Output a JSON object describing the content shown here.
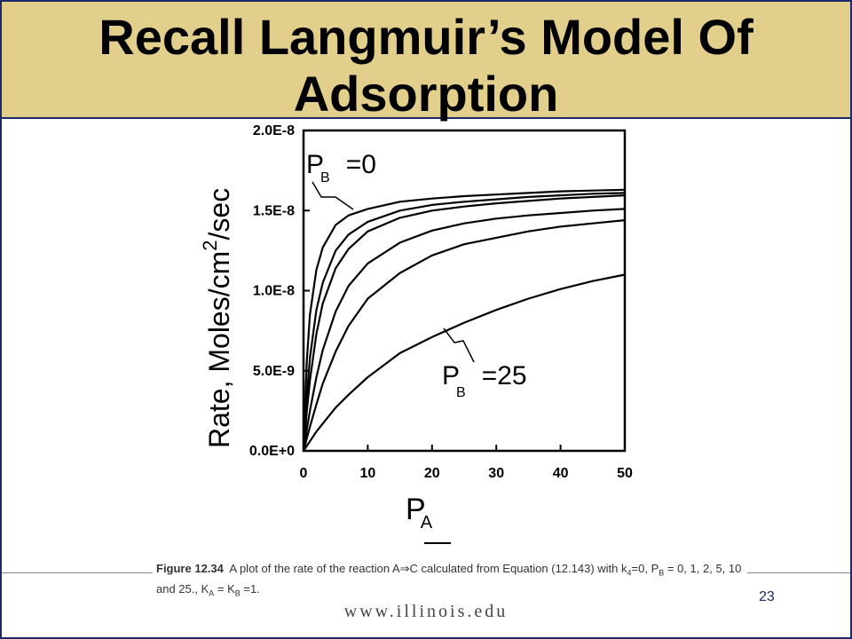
{
  "slide": {
    "title": "Recall Langmuir’s Model Of Adsorption",
    "page_number": "23",
    "footer_url": "www.illinois.edu"
  },
  "caption": {
    "figure_label": "Figure 12.34",
    "text_part1": "A plot of the rate of the reaction A",
    "arrow": "⇒",
    "text_part2": "C calculated from Equation (12.143) with k",
    "k_sub": "4",
    "text_part3": "=0, P",
    "pb_sub": "B",
    "text_part4": " = 0, 1, 2, 5, 10 and 25., K",
    "ka_sub": "A",
    "text_part5": " = K",
    "kb_sub": "B",
    "text_part6": " =1."
  },
  "colors": {
    "title_band": "#e3cf8c",
    "border": "#1c2a6b",
    "curve": "#000000"
  },
  "chart_data": {
    "type": "line",
    "xlabel_main": "P",
    "xlabel_sub": "A",
    "ylabel_main": "Rate, Moles/cm",
    "ylabel_sup": "2",
    "ylabel_tail": "/sec",
    "xlim": [
      0,
      50
    ],
    "ylim": [
      0,
      2e-08
    ],
    "x_ticks": [
      0,
      10,
      20,
      30,
      40,
      50
    ],
    "x_tick_labels": [
      "0",
      "10",
      "20",
      "30",
      "40",
      "50"
    ],
    "y_ticks": [
      0,
      5e-09,
      1e-08,
      1.5e-08,
      2e-08
    ],
    "y_tick_labels": [
      "0.0E+0",
      "5.0E-9",
      "1.0E-8",
      "1.5E-8",
      "2.0E-8"
    ],
    "grid": false,
    "annotations": [
      {
        "main": "P",
        "sub": "B",
        "value": "=0"
      },
      {
        "main": "P",
        "sub": "B",
        "value": "=25"
      }
    ],
    "x": [
      0,
      0.5,
      1,
      2,
      3,
      5,
      7,
      10,
      15,
      20,
      25,
      30,
      35,
      40,
      45,
      50
    ],
    "series": [
      {
        "values": [
          0,
          5.5e-09,
          8.5e-09,
          1.13e-08,
          1.27e-08,
          1.41e-08,
          1.47e-08,
          1.51e-08,
          1.555e-08,
          1.575e-08,
          1.59e-08,
          1.6e-08,
          1.61e-08,
          1.62e-08,
          1.625e-08,
          1.63e-08
        ]
      },
      {
        "values": [
          0,
          3.3e-09,
          5.8e-09,
          8.8e-09,
          1.05e-08,
          1.25e-08,
          1.35e-08,
          1.43e-08,
          1.5e-08,
          1.535e-08,
          1.555e-08,
          1.57e-08,
          1.585e-08,
          1.595e-08,
          1.605e-08,
          1.61e-08
        ]
      },
      {
        "values": [
          0,
          2.4e-09,
          4.4e-09,
          7.3e-09,
          9.2e-09,
          1.14e-08,
          1.26e-08,
          1.37e-08,
          1.455e-08,
          1.5e-08,
          1.525e-08,
          1.545e-08,
          1.56e-08,
          1.575e-08,
          1.585e-08,
          1.595e-08
        ]
      },
      {
        "values": [
          0,
          1.3e-09,
          2.5e-09,
          4.6e-09,
          6.3e-09,
          8.7e-09,
          1.03e-08,
          1.17e-08,
          1.3e-08,
          1.375e-08,
          1.42e-08,
          1.45e-08,
          1.47e-08,
          1.485e-08,
          1.5e-08,
          1.51e-08
        ]
      },
      {
        "values": [
          0,
          7.5e-10,
          1.5e-09,
          2.9e-09,
          4.2e-09,
          6.2e-09,
          7.8e-09,
          9.5e-09,
          1.11e-08,
          1.22e-08,
          1.29e-08,
          1.33e-08,
          1.37e-08,
          1.4e-08,
          1.42e-08,
          1.44e-08
        ]
      },
      {
        "values": [
          0,
          3e-10,
          6e-10,
          1.2e-09,
          1.7e-09,
          2.7e-09,
          3.5e-09,
          4.6e-09,
          6.1e-09,
          7.1e-09,
          8e-09,
          8.8e-09,
          9.5e-09,
          1.01e-08,
          1.06e-08,
          1.1e-08
        ]
      }
    ]
  }
}
